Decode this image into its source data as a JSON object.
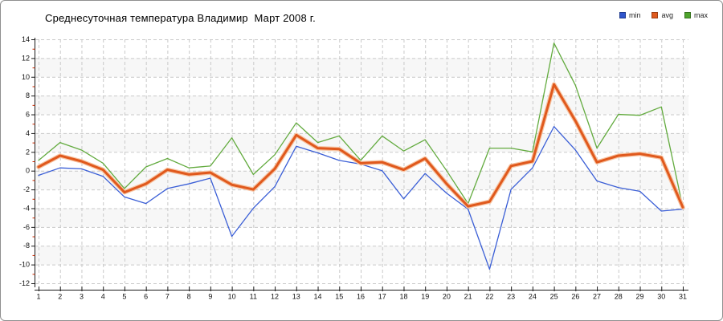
{
  "title": "Среднесуточная температура Владимир  Март 2008 г.",
  "legend": [
    {
      "label": "min",
      "color": "#2f55cc"
    },
    {
      "label": "avg",
      "color": "#e05a1e"
    },
    {
      "label": "max",
      "color": "#4ea42c"
    }
  ],
  "chart_data": {
    "type": "line",
    "title": "Среднесуточная температура Владимир  Март 2008 г.",
    "xlabel": "",
    "ylabel": "",
    "x": [
      1,
      2,
      3,
      4,
      5,
      6,
      7,
      8,
      9,
      10,
      11,
      12,
      13,
      14,
      15,
      16,
      17,
      18,
      19,
      20,
      21,
      22,
      23,
      24,
      25,
      26,
      27,
      28,
      29,
      30,
      31
    ],
    "x_ticklabels": [
      "1",
      "2",
      "3",
      "4",
      "5",
      "6",
      "7",
      "8",
      "9",
      "10",
      "11",
      "12",
      "13",
      "14",
      "15",
      "16",
      "17",
      "18",
      "19",
      "20",
      "21",
      "22",
      "23",
      "24",
      "25",
      "26",
      "27",
      "28",
      "29",
      "30",
      "31"
    ],
    "ylim": [
      -12,
      14
    ],
    "y_ticks": [
      14,
      12,
      10,
      8,
      6,
      4,
      2,
      0,
      -2,
      -4,
      -6,
      -8,
      -10,
      -12
    ],
    "y_minor_ticks": [
      13,
      11,
      9,
      7,
      5,
      3,
      1,
      -1,
      -3,
      -5,
      -7,
      -9,
      -11
    ],
    "grid": true,
    "legend_position": "top-right",
    "series": [
      {
        "name": "min",
        "color": "#3a5ed6",
        "width": 1.3,
        "values": [
          -0.5,
          0.3,
          0.2,
          -0.6,
          -2.8,
          -3.5,
          -1.9,
          -1.4,
          -0.8,
          -7.0,
          -4.0,
          -1.7,
          2.6,
          1.9,
          1.1,
          0.7,
          0.0,
          -3.0,
          -0.3,
          -2.4,
          -4.1,
          -10.5,
          -2.0,
          0.3,
          4.7,
          2.2,
          -1.1,
          -1.8,
          -2.2,
          -4.3,
          -4.1
        ]
      },
      {
        "name": "avg",
        "color": "#e0591d",
        "halo_color": "#f7c5a4",
        "width": 3,
        "values": [
          0.4,
          1.6,
          1.0,
          0.1,
          -2.3,
          -1.4,
          0.1,
          -0.4,
          -0.2,
          -1.5,
          -2.0,
          0.2,
          3.8,
          2.4,
          2.3,
          0.8,
          0.9,
          0.1,
          1.3,
          -1.4,
          -3.8,
          -3.3,
          0.5,
          1.0,
          9.2,
          5.3,
          0.9,
          1.6,
          1.8,
          1.4,
          -3.9
        ]
      },
      {
        "name": "max",
        "color": "#63ab3f",
        "width": 1.3,
        "values": [
          1.1,
          3.0,
          2.2,
          0.8,
          -1.9,
          0.4,
          1.3,
          0.3,
          0.5,
          3.5,
          -0.4,
          1.7,
          5.1,
          3.0,
          3.7,
          1.1,
          3.7,
          2.1,
          3.3,
          0.0,
          -3.5,
          2.4,
          2.4,
          2.0,
          13.6,
          9.1,
          2.4,
          6.0,
          5.9,
          6.8,
          -3.9
        ]
      }
    ],
    "style": {
      "band_color": "#f7f7f7",
      "grid_color": "#c9c9c9",
      "axis_color": "#1a1a1a",
      "minor_tick_color": "#cc2a00",
      "tick_label_color": "#111111"
    }
  }
}
